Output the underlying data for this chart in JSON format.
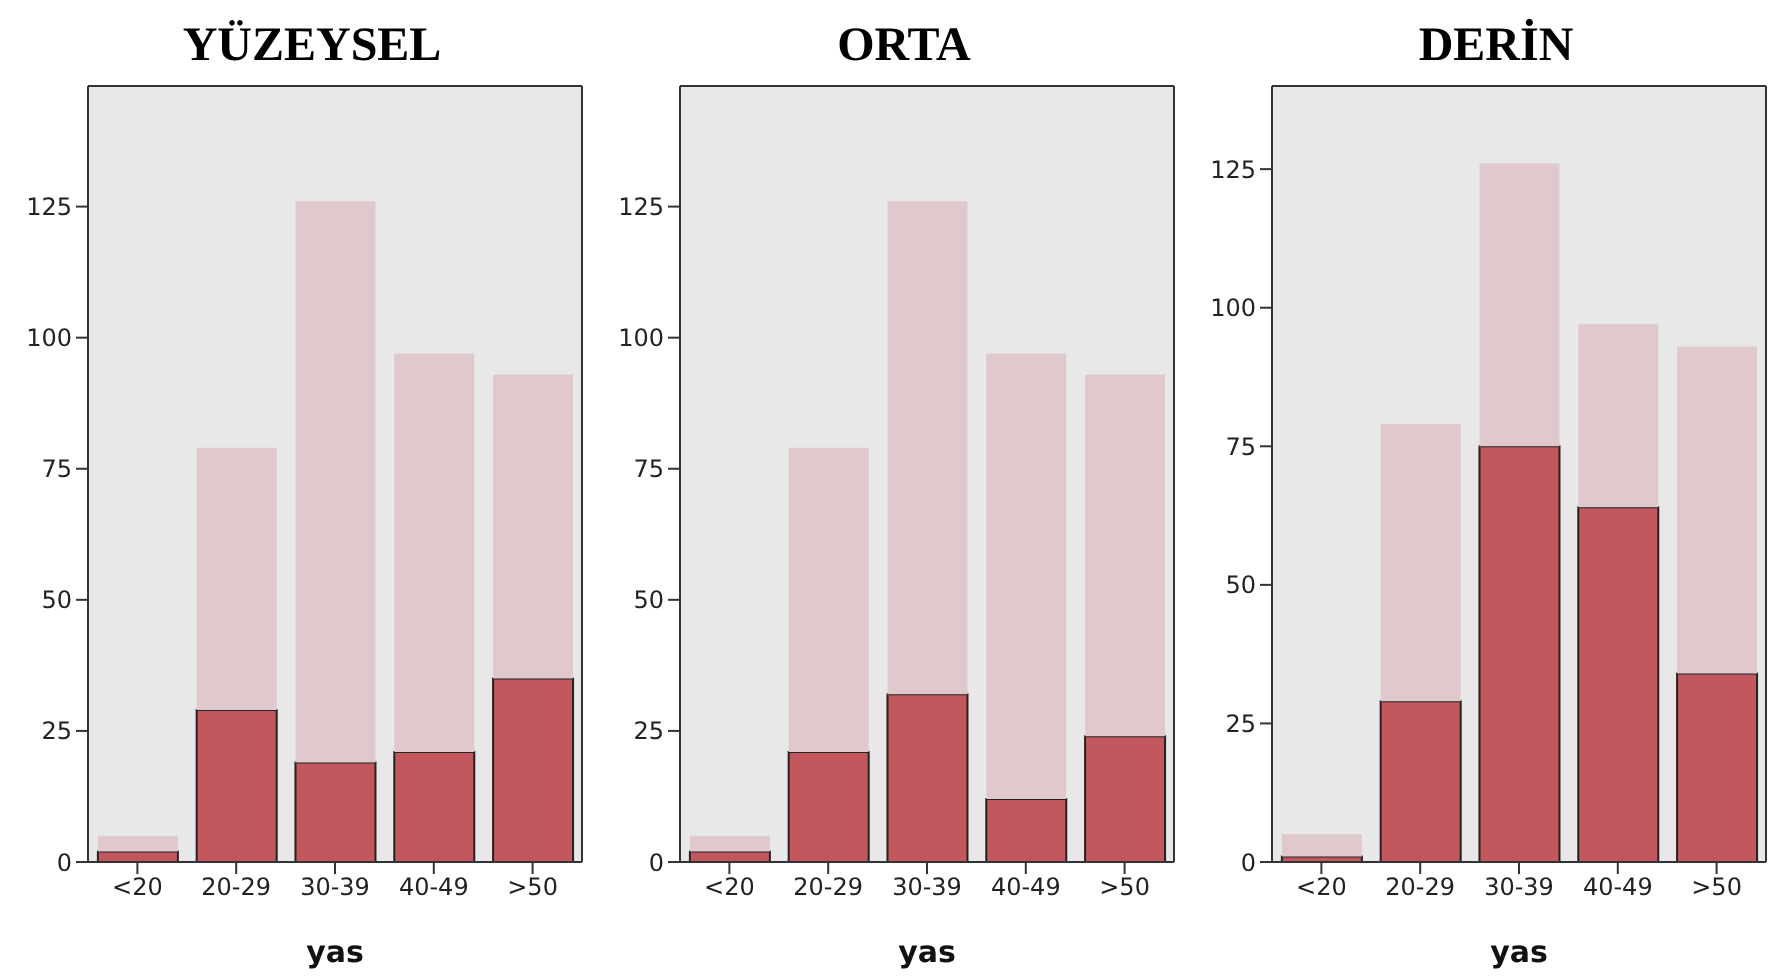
{
  "chart_data": [
    {
      "type": "bar",
      "title": "YÜZEYSEL",
      "xlabel": "yas",
      "categories": [
        "<20",
        "20-29",
        "30-39",
        "40-49",
        ">50"
      ],
      "stacked": true,
      "series": [
        {
          "color": "#c2575e",
          "values": [
            2,
            29,
            19,
            21,
            35
          ]
        },
        {
          "color": "#e0c9cc",
          "values": [
            3,
            50,
            107,
            76,
            58
          ]
        }
      ],
      "ylim": [
        0,
        148
      ],
      "yticks": [
        0,
        25,
        50,
        75,
        100,
        125
      ],
      "grid": false,
      "legend": false
    },
    {
      "type": "bar",
      "title": "ORTA",
      "xlabel": "yas",
      "categories": [
        "<20",
        "20-29",
        "30-39",
        "40-49",
        ">50"
      ],
      "stacked": true,
      "series": [
        {
          "color": "#c2575e",
          "values": [
            2,
            21,
            32,
            12,
            24
          ]
        },
        {
          "color": "#e0c9cc",
          "values": [
            3,
            58,
            94,
            85,
            69
          ]
        }
      ],
      "ylim": [
        0,
        148
      ],
      "yticks": [
        0,
        25,
        50,
        75,
        100,
        125
      ],
      "grid": false,
      "legend": false
    },
    {
      "type": "bar",
      "title": "DERİN",
      "xlabel": "yas",
      "categories": [
        "<20",
        "20-29",
        "30-39",
        "40-49",
        ">50"
      ],
      "stacked": true,
      "series": [
        {
          "color": "#c2575e",
          "values": [
            1,
            29,
            75,
            64,
            34
          ]
        },
        {
          "color": "#e0c9cc",
          "values": [
            4,
            50,
            51,
            33,
            59
          ]
        }
      ],
      "ylim": [
        0,
        140
      ],
      "yticks": [
        0,
        25,
        50,
        75,
        100,
        125
      ],
      "grid": false,
      "legend": false
    }
  ]
}
